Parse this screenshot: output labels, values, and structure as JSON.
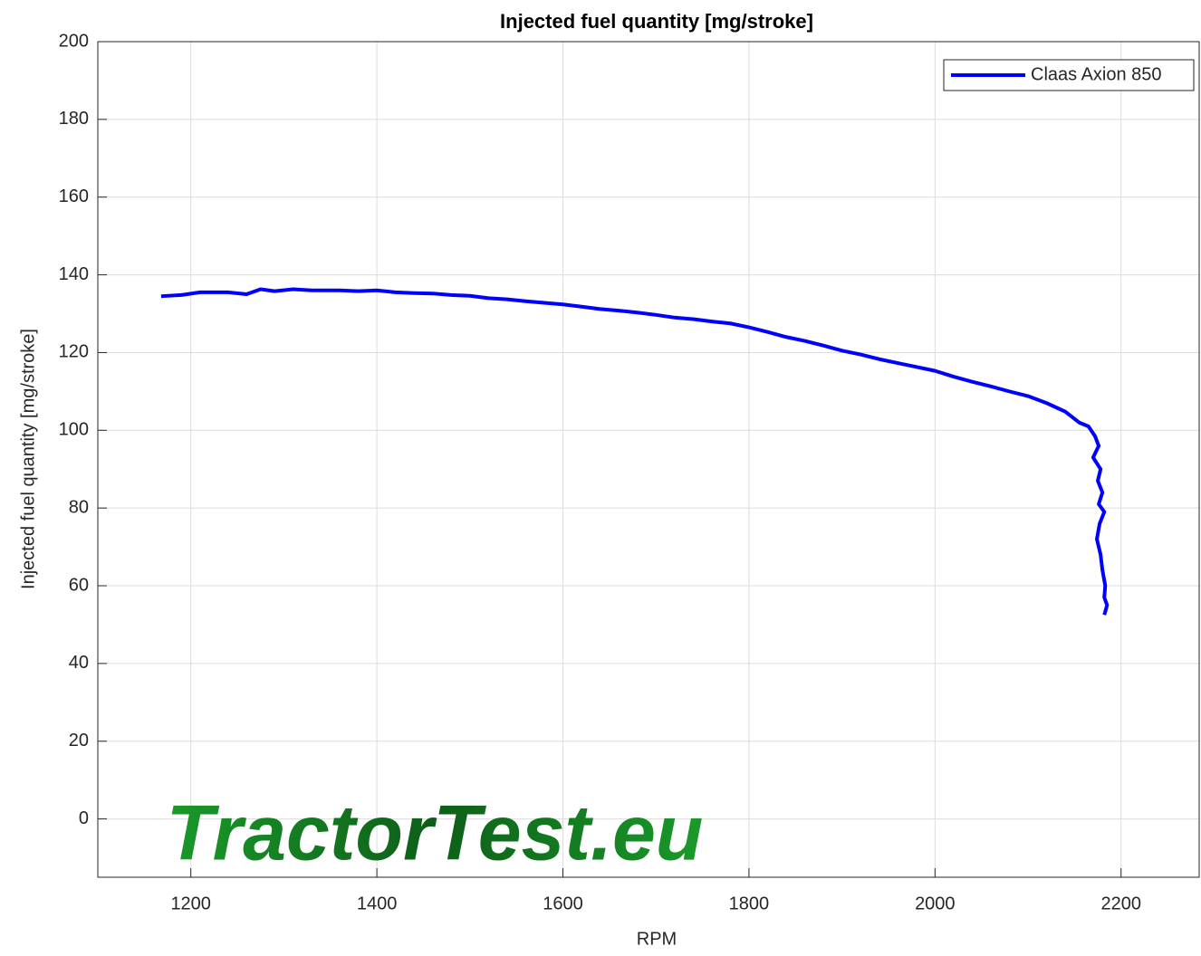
{
  "chart_data": {
    "type": "line",
    "title": "Injected fuel quantity [mg/stroke]",
    "xlabel": "RPM",
    "ylabel": "Injected fuel quantity [mg/stroke]",
    "watermark": "TractorTest.eu",
    "xlim": [
      1100,
      2284
    ],
    "xticks": [
      1200,
      1400,
      1600,
      1800,
      2000,
      2200
    ],
    "ylim": [
      -15,
      200
    ],
    "yticks": [
      0,
      20,
      40,
      60,
      80,
      100,
      120,
      140,
      160,
      180,
      200
    ],
    "grid": true,
    "legend": "upper right",
    "series": [
      {
        "name": "Claas Axion 850",
        "color": "#0000ff",
        "x": [
          1168,
          1190,
          1210,
          1240,
          1260,
          1275,
          1290,
          1310,
          1330,
          1360,
          1380,
          1400,
          1420,
          1440,
          1460,
          1480,
          1500,
          1520,
          1540,
          1560,
          1580,
          1600,
          1620,
          1640,
          1660,
          1680,
          1700,
          1720,
          1740,
          1760,
          1780,
          1800,
          1820,
          1840,
          1860,
          1880,
          1900,
          1920,
          1940,
          1960,
          1980,
          2000,
          2020,
          2040,
          2060,
          2080,
          2100,
          2120,
          2140,
          2155,
          2165,
          2172,
          2176,
          2170,
          2178,
          2175,
          2180,
          2176,
          2182,
          2177,
          2174,
          2178,
          2180,
          2183,
          2182,
          2185,
          2182
        ],
        "values": [
          134.5,
          134.8,
          135.5,
          135.5,
          135,
          136.3,
          135.8,
          136.3,
          136,
          136,
          135.8,
          136,
          135.5,
          135.3,
          135.2,
          134.8,
          134.6,
          134,
          133.7,
          133.2,
          132.8,
          132.4,
          131.8,
          131.2,
          130.8,
          130.3,
          129.7,
          129,
          128.6,
          128,
          127.5,
          126.5,
          125.3,
          124,
          123,
          121.8,
          120.5,
          119.5,
          118.3,
          117.3,
          116.3,
          115.3,
          113.8,
          112.5,
          111.3,
          110,
          108.8,
          107,
          104.8,
          102,
          101,
          98.5,
          96,
          93,
          90,
          87,
          84,
          81,
          79,
          76,
          72,
          68,
          64,
          60,
          57,
          55,
          52.5
        ]
      }
    ]
  }
}
